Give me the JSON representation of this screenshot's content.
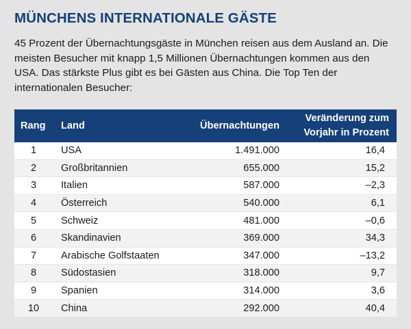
{
  "title": "MÜNCHENS INTERNATIONALE GÄSTE",
  "intro": "45 Prozent der Übernachtungsgäste in München reisen aus dem Ausland an. Die meisten Besucher mit knapp 1,5 Millionen Übernachtungen kommen aus den USA. Das stärkste Plus gibt es bei Gästen aus China. Die Top Ten der internationalen Besucher:",
  "colors": {
    "accent": "#15407a",
    "background": "#e4e4e4",
    "row_light": "#ffffff",
    "row_alt": "#f2f2f2"
  },
  "table": {
    "headers": {
      "rang": "Rang",
      "land": "Land",
      "uebernachtungen": "Übernachtungen",
      "veraenderung_line1": "Veränderung zum",
      "veraenderung_line2": "Vorjahr in Prozent"
    },
    "rows": [
      {
        "rang": "1",
        "land": "USA",
        "uebernachtungen": "1.491.000",
        "veraenderung": "16,4"
      },
      {
        "rang": "2",
        "land": "Großbritannien",
        "uebernachtungen": "655.000",
        "veraenderung": "15,2"
      },
      {
        "rang": "3",
        "land": "Italien",
        "uebernachtungen": "587.000",
        "veraenderung": "–2,3"
      },
      {
        "rang": "4",
        "land": "Österreich",
        "uebernachtungen": "540.000",
        "veraenderung": "6,1"
      },
      {
        "rang": "5",
        "land": "Schweiz",
        "uebernachtungen": "481.000",
        "veraenderung": "–0,6"
      },
      {
        "rang": "6",
        "land": "Skandinavien",
        "uebernachtungen": "369.000",
        "veraenderung": "34,3"
      },
      {
        "rang": "7",
        "land": "Arabische Golfstaaten",
        "uebernachtungen": "347.000",
        "veraenderung": "–13,2"
      },
      {
        "rang": "8",
        "land": "Südostasien",
        "uebernachtungen": "318.000",
        "veraenderung": "9,7"
      },
      {
        "rang": "9",
        "land": "Spanien",
        "uebernachtungen": "314.000",
        "veraenderung": "3,6"
      },
      {
        "rang": "10",
        "land": "China",
        "uebernachtungen": "292.000",
        "veraenderung": "40,4"
      }
    ]
  }
}
